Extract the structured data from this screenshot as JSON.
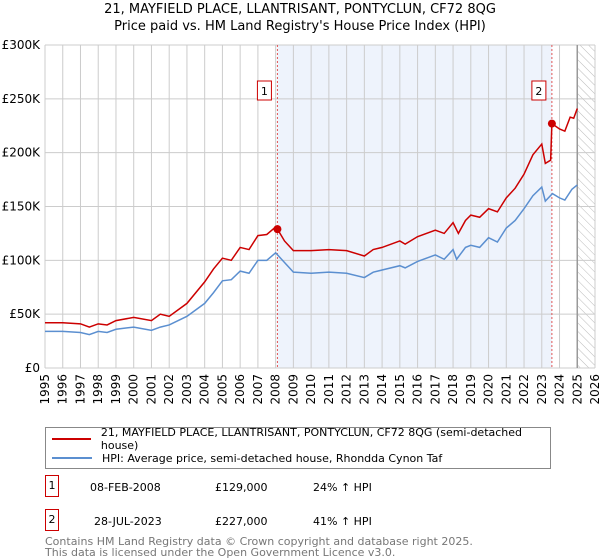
{
  "chart_data": {
    "type": "line",
    "title": "21, MAYFIELD PLACE, LLANTRISANT, PONTYCLUN, CF72 8QG",
    "subtitle": "Price paid vs. HM Land Registry's House Price Index (HPI)",
    "xlim": [
      1995,
      2026
    ],
    "ylim": [
      0,
      300000
    ],
    "x_ticks": [
      "1995",
      "1996",
      "1997",
      "1998",
      "1999",
      "2000",
      "2001",
      "2002",
      "2003",
      "2004",
      "2005",
      "2006",
      "2007",
      "2008",
      "2009",
      "2010",
      "2011",
      "2012",
      "2013",
      "2014",
      "2015",
      "2016",
      "2017",
      "2018",
      "2019",
      "2020",
      "2021",
      "2022",
      "2023",
      "2024",
      "2025",
      "2026"
    ],
    "y_ticks": [
      {
        "v": 0,
        "label": "£0"
      },
      {
        "v": 50000,
        "label": "£50K"
      },
      {
        "v": 100000,
        "label": "£100K"
      },
      {
        "v": 150000,
        "label": "£150K"
      },
      {
        "v": 200000,
        "label": "£200K"
      },
      {
        "v": 250000,
        "label": "£250K"
      },
      {
        "v": 300000,
        "label": "£300K"
      }
    ],
    "grid": true,
    "shaded_range": [
      2008.1,
      2023.57
    ],
    "forecast_hatch_from": 2025,
    "series": [
      {
        "name": "21, MAYFIELD PLACE, LLANTRISANT, PONTYCLUN, CF72 8QG (semi-detached house)",
        "color": "#cc0000",
        "x": [
          1995,
          1996,
          1997,
          1997.5,
          1998,
          1998.5,
          1999,
          2000,
          2001,
          2001.5,
          2002,
          2003,
          2004,
          2004.5,
          2005,
          2005.5,
          2006,
          2006.5,
          2007,
          2007.5,
          2008,
          2008.1,
          2008.5,
          2009,
          2010,
          2011,
          2012,
          2013,
          2013.5,
          2014,
          2015,
          2015.3,
          2016,
          2017,
          2017.5,
          2018,
          2018.3,
          2018.7,
          2019,
          2019.5,
          2020,
          2020.5,
          2021,
          2021.5,
          2022,
          2022.5,
          2023,
          2023.2,
          2023.5,
          2023.57,
          2024,
          2024.3,
          2024.6,
          2024.8,
          2025
        ],
        "y": [
          42000,
          42000,
          41000,
          38000,
          41000,
          40000,
          44000,
          47000,
          44000,
          50000,
          48000,
          60000,
          80000,
          92000,
          102000,
          100000,
          112000,
          110000,
          123000,
          124000,
          131000,
          129000,
          118000,
          109000,
          109000,
          110000,
          109000,
          104000,
          110000,
          112000,
          118000,
          115000,
          122000,
          128000,
          125000,
          135000,
          125000,
          137000,
          142000,
          140000,
          148000,
          145000,
          158000,
          167000,
          180000,
          198000,
          208000,
          190000,
          193000,
          227000,
          222000,
          220000,
          233000,
          232000,
          241000
        ]
      },
      {
        "name": "HPI: Average price, semi-detached house, Rhondda Cynon Taf",
        "color": "#5b8fd0",
        "x": [
          1995,
          1996,
          1997,
          1997.5,
          1998,
          1998.5,
          1999,
          2000,
          2001,
          2001.5,
          2002,
          2003,
          2004,
          2004.5,
          2005,
          2005.5,
          2006,
          2006.5,
          2007,
          2007.5,
          2008,
          2008.5,
          2009,
          2010,
          2011,
          2012,
          2013,
          2013.5,
          2014,
          2015,
          2015.3,
          2016,
          2017,
          2017.5,
          2018,
          2018.2,
          2018.7,
          2019,
          2019.5,
          2020,
          2020.5,
          2021,
          2021.5,
          2022,
          2022.5,
          2023,
          2023.2,
          2023.6,
          2024,
          2024.3,
          2024.7,
          2025
        ],
        "y": [
          34000,
          34000,
          33000,
          31000,
          34000,
          33000,
          36000,
          38000,
          35000,
          38000,
          40000,
          48000,
          60000,
          70000,
          81000,
          82000,
          90000,
          88000,
          100000,
          100000,
          107000,
          98000,
          89000,
          88000,
          89000,
          88000,
          84000,
          89000,
          91000,
          95000,
          93000,
          99000,
          105000,
          101000,
          110000,
          101000,
          112000,
          114000,
          112000,
          121000,
          117000,
          130000,
          137000,
          148000,
          160000,
          168000,
          155000,
          162000,
          158000,
          156000,
          166000,
          170000
        ]
      }
    ],
    "markers": [
      {
        "label": "1",
        "x": 2008.1,
        "y": 129000
      },
      {
        "label": "2",
        "x": 2023.57,
        "y": 227000
      }
    ]
  },
  "legend": {
    "red": "21, MAYFIELD PLACE, LLANTRISANT, PONTYCLUN, CF72 8QG (semi-detached house)",
    "blue": "HPI: Average price, semi-detached house, Rhondda Cynon Taf"
  },
  "sales": [
    {
      "num": "1",
      "date": "08-FEB-2008",
      "price": "£129,000",
      "hpi": "24% ↑ HPI"
    },
    {
      "num": "2",
      "date": "28-JUL-2023",
      "price": "£227,000",
      "hpi": "41% ↑ HPI"
    }
  ],
  "footer": {
    "line1": "Contains HM Land Registry data © Crown copyright and database right 2025.",
    "line2": "This data is licensed under the Open Government Licence v3.0."
  }
}
